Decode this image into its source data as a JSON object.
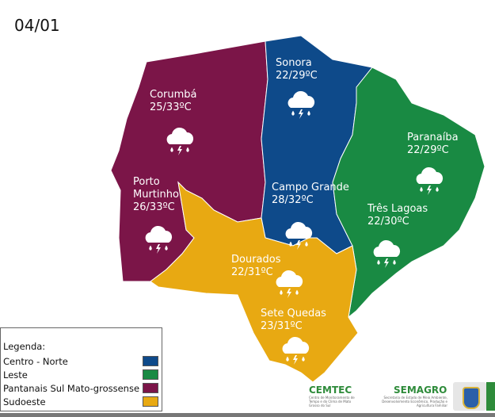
{
  "date": "04/01",
  "colors": {
    "centro_norte": "#0e4a8a",
    "leste": "#198a43",
    "pantanais": "#7b1548",
    "sudoeste": "#e8a912"
  },
  "regions": [
    {
      "name": "Corumbá",
      "temp": "25/33ºC",
      "icon": "thunderstorm-rain-icon"
    },
    {
      "name": "Sonora",
      "temp": "22/29ºC",
      "icon": "thunderstorm-rain-icon"
    },
    {
      "name": "Paranaíba",
      "temp": "22/29ºC",
      "icon": "thunderstorm-rain-icon"
    },
    {
      "name": "Porto Murtinho",
      "temp": "26/33ºC",
      "icon": "thunderstorm-rain-icon"
    },
    {
      "name": "Campo Grande",
      "temp": "28/32ºC",
      "icon": "thunderstorm-rain-icon"
    },
    {
      "name": "Três Lagoas",
      "temp": "22/30ºC",
      "icon": "thunderstorm-rain-icon"
    },
    {
      "name": "Dourados",
      "temp": "22/31ºC",
      "icon": "thunderstorm-rain-icon"
    },
    {
      "name": "Sete Quedas",
      "temp": "23/31ºC",
      "icon": "thunderstorm-rain-icon"
    }
  ],
  "legend": {
    "title": "Legenda:",
    "items": [
      {
        "label": "Centro - Norte",
        "color": "#0e4a8a"
      },
      {
        "label": "Leste",
        "color": "#198a43"
      },
      {
        "label": "Pantanais Sul Mato-grossense",
        "color": "#7b1548"
      },
      {
        "label": "Sudoeste",
        "color": "#e8a912"
      }
    ]
  },
  "logos": {
    "cemtec": "CEMTEC",
    "cemtec_sub": "Centro de Monitoramento de Tempo e do Clima de Mato Grosso do Sul",
    "semagro": "SEMAGRO",
    "semagro_sub": "Secretaria de Estado de Meio Ambiente, Desenvolvimento Econômico, Produção e Agricultura Familiar"
  }
}
